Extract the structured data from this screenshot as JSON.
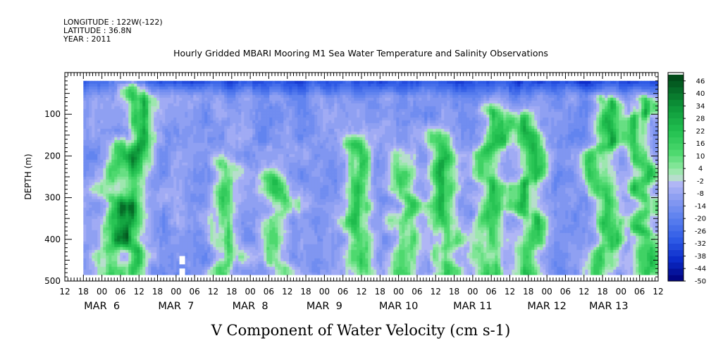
{
  "header": {
    "longitude": "LONGITUDE : 122W(-122)",
    "latitude": "LATITUDE : 36.8N",
    "year": "YEAR : 2011",
    "title": "Hourly Gridded MBARI Mooring M1 Sea Water Temperature and Salinity Observations"
  },
  "chart_data": {
    "type": "heatmap",
    "title": "Hourly Gridded MBARI Mooring M1 Sea Water Temperature and Salinity Observations",
    "xlabel": "V Component of Water Velocity (cm s-1)",
    "ylabel": "DEPTH (m)",
    "x_unit": "hours since MAR 5 12:00",
    "xlim": [
      0,
      192
    ],
    "data_x_range": [
      6,
      192
    ],
    "ylim": [
      500,
      0
    ],
    "data_y_range": [
      20,
      485
    ],
    "y_ticks": [
      100,
      200,
      300,
      400,
      500
    ],
    "x_ticks": [
      {
        "h": 0,
        "label": "12"
      },
      {
        "h": 6,
        "label": "18"
      },
      {
        "h": 12,
        "label": "00"
      },
      {
        "h": 18,
        "label": "06"
      },
      {
        "h": 24,
        "label": "12"
      },
      {
        "h": 30,
        "label": "18"
      },
      {
        "h": 36,
        "label": "00"
      },
      {
        "h": 42,
        "label": "06"
      },
      {
        "h": 48,
        "label": "12"
      },
      {
        "h": 54,
        "label": "18"
      },
      {
        "h": 60,
        "label": "00"
      },
      {
        "h": 66,
        "label": "06"
      },
      {
        "h": 72,
        "label": "12"
      },
      {
        "h": 78,
        "label": "18"
      },
      {
        "h": 84,
        "label": "00"
      },
      {
        "h": 90,
        "label": "06"
      },
      {
        "h": 96,
        "label": "12"
      },
      {
        "h": 102,
        "label": "18"
      },
      {
        "h": 108,
        "label": "00"
      },
      {
        "h": 114,
        "label": "06"
      },
      {
        "h": 120,
        "label": "12"
      },
      {
        "h": 126,
        "label": "18"
      },
      {
        "h": 132,
        "label": "00"
      },
      {
        "h": 138,
        "label": "06"
      },
      {
        "h": 144,
        "label": "12"
      },
      {
        "h": 150,
        "label": "18"
      },
      {
        "h": 156,
        "label": "00"
      },
      {
        "h": 162,
        "label": "06"
      },
      {
        "h": 168,
        "label": "12"
      },
      {
        "h": 174,
        "label": "18"
      },
      {
        "h": 180,
        "label": "00"
      },
      {
        "h": 186,
        "label": "06"
      },
      {
        "h": 192,
        "label": "12"
      }
    ],
    "month_labels": [
      {
        "h": 12,
        "label": "MAR  6"
      },
      {
        "h": 36,
        "label": "MAR  7"
      },
      {
        "h": 60,
        "label": "MAR  8"
      },
      {
        "h": 84,
        "label": "MAR  9"
      },
      {
        "h": 108,
        "label": "MAR 10"
      },
      {
        "h": 132,
        "label": "MAR 11"
      },
      {
        "h": 156,
        "label": "MAR 12"
      },
      {
        "h": 176,
        "label": "MAR 13"
      }
    ],
    "colorbar": {
      "min": -50,
      "max": 50,
      "step": 3,
      "tick_labels": [
        "46",
        "40",
        "34",
        "28",
        "22",
        "16",
        "10",
        "4",
        "-2",
        "-8",
        "-14",
        "-20",
        "-26",
        "-32",
        "-38",
        "-44",
        "-50"
      ]
    },
    "missing_cells": [
      {
        "h": 38,
        "depth_from": 440,
        "depth_to": 460
      },
      {
        "h": 38,
        "depth_from": 470,
        "depth_to": 490
      }
    ],
    "positive_regions": [
      {
        "h": 23,
        "depth_from": 40,
        "depth_to": 485,
        "peak": 16
      },
      {
        "h": 15,
        "depth_from": 180,
        "depth_to": 485,
        "peak": 10
      },
      {
        "h": 52,
        "depth_from": 230,
        "depth_to": 485,
        "peak": 8
      },
      {
        "h": 69,
        "depth_from": 260,
        "depth_to": 485,
        "peak": 9
      },
      {
        "h": 95,
        "depth_from": 180,
        "depth_to": 485,
        "peak": 14
      },
      {
        "h": 110,
        "depth_from": 200,
        "depth_to": 485,
        "peak": 10
      },
      {
        "h": 122,
        "depth_from": 160,
        "depth_to": 485,
        "peak": 15
      },
      {
        "h": 138,
        "depth_from": 100,
        "depth_to": 485,
        "peak": 16
      },
      {
        "h": 150,
        "depth_from": 120,
        "depth_to": 485,
        "peak": 16
      },
      {
        "h": 175,
        "depth_from": 80,
        "depth_to": 485,
        "peak": 18
      },
      {
        "h": 187,
        "depth_from": 80,
        "depth_to": 485,
        "peak": 14
      }
    ],
    "surface_layer": {
      "depth_from": 20,
      "depth_to": 60,
      "value": -32
    }
  }
}
